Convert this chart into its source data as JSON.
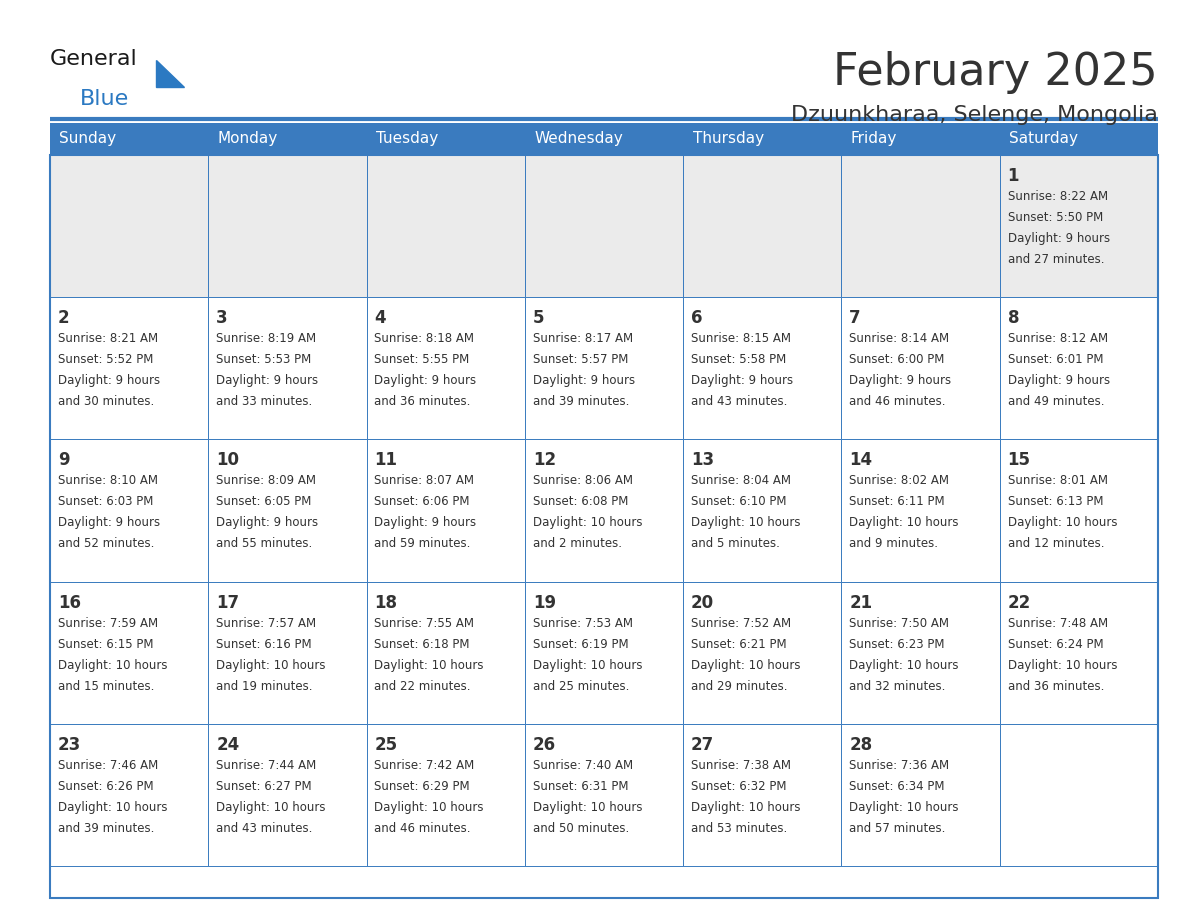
{
  "title": "February 2025",
  "subtitle": "Dzuunkharaa, Selenge, Mongolia",
  "header_bg": "#3a7bbf",
  "header_text_color": "#ffffff",
  "cell_bg_gray": "#ebebeb",
  "cell_bg_white": "#ffffff",
  "border_color": "#3a7bbf",
  "text_color": "#333333",
  "days_of_week": [
    "Sunday",
    "Monday",
    "Tuesday",
    "Wednesday",
    "Thursday",
    "Friday",
    "Saturday"
  ],
  "calendar_data": [
    [
      null,
      null,
      null,
      null,
      null,
      null,
      {
        "day": "1",
        "sunrise": "8:22 AM",
        "sunset": "5:50 PM",
        "daylight_line1": "Daylight: 9 hours",
        "daylight_line2": "and 27 minutes."
      }
    ],
    [
      {
        "day": "2",
        "sunrise": "8:21 AM",
        "sunset": "5:52 PM",
        "daylight_line1": "Daylight: 9 hours",
        "daylight_line2": "and 30 minutes."
      },
      {
        "day": "3",
        "sunrise": "8:19 AM",
        "sunset": "5:53 PM",
        "daylight_line1": "Daylight: 9 hours",
        "daylight_line2": "and 33 minutes."
      },
      {
        "day": "4",
        "sunrise": "8:18 AM",
        "sunset": "5:55 PM",
        "daylight_line1": "Daylight: 9 hours",
        "daylight_line2": "and 36 minutes."
      },
      {
        "day": "5",
        "sunrise": "8:17 AM",
        "sunset": "5:57 PM",
        "daylight_line1": "Daylight: 9 hours",
        "daylight_line2": "and 39 minutes."
      },
      {
        "day": "6",
        "sunrise": "8:15 AM",
        "sunset": "5:58 PM",
        "daylight_line1": "Daylight: 9 hours",
        "daylight_line2": "and 43 minutes."
      },
      {
        "day": "7",
        "sunrise": "8:14 AM",
        "sunset": "6:00 PM",
        "daylight_line1": "Daylight: 9 hours",
        "daylight_line2": "and 46 minutes."
      },
      {
        "day": "8",
        "sunrise": "8:12 AM",
        "sunset": "6:01 PM",
        "daylight_line1": "Daylight: 9 hours",
        "daylight_line2": "and 49 minutes."
      }
    ],
    [
      {
        "day": "9",
        "sunrise": "8:10 AM",
        "sunset": "6:03 PM",
        "daylight_line1": "Daylight: 9 hours",
        "daylight_line2": "and 52 minutes."
      },
      {
        "day": "10",
        "sunrise": "8:09 AM",
        "sunset": "6:05 PM",
        "daylight_line1": "Daylight: 9 hours",
        "daylight_line2": "and 55 minutes."
      },
      {
        "day": "11",
        "sunrise": "8:07 AM",
        "sunset": "6:06 PM",
        "daylight_line1": "Daylight: 9 hours",
        "daylight_line2": "and 59 minutes."
      },
      {
        "day": "12",
        "sunrise": "8:06 AM",
        "sunset": "6:08 PM",
        "daylight_line1": "Daylight: 10 hours",
        "daylight_line2": "and 2 minutes."
      },
      {
        "day": "13",
        "sunrise": "8:04 AM",
        "sunset": "6:10 PM",
        "daylight_line1": "Daylight: 10 hours",
        "daylight_line2": "and 5 minutes."
      },
      {
        "day": "14",
        "sunrise": "8:02 AM",
        "sunset": "6:11 PM",
        "daylight_line1": "Daylight: 10 hours",
        "daylight_line2": "and 9 minutes."
      },
      {
        "day": "15",
        "sunrise": "8:01 AM",
        "sunset": "6:13 PM",
        "daylight_line1": "Daylight: 10 hours",
        "daylight_line2": "and 12 minutes."
      }
    ],
    [
      {
        "day": "16",
        "sunrise": "7:59 AM",
        "sunset": "6:15 PM",
        "daylight_line1": "Daylight: 10 hours",
        "daylight_line2": "and 15 minutes."
      },
      {
        "day": "17",
        "sunrise": "7:57 AM",
        "sunset": "6:16 PM",
        "daylight_line1": "Daylight: 10 hours",
        "daylight_line2": "and 19 minutes."
      },
      {
        "day": "18",
        "sunrise": "7:55 AM",
        "sunset": "6:18 PM",
        "daylight_line1": "Daylight: 10 hours",
        "daylight_line2": "and 22 minutes."
      },
      {
        "day": "19",
        "sunrise": "7:53 AM",
        "sunset": "6:19 PM",
        "daylight_line1": "Daylight: 10 hours",
        "daylight_line2": "and 25 minutes."
      },
      {
        "day": "20",
        "sunrise": "7:52 AM",
        "sunset": "6:21 PM",
        "daylight_line1": "Daylight: 10 hours",
        "daylight_line2": "and 29 minutes."
      },
      {
        "day": "21",
        "sunrise": "7:50 AM",
        "sunset": "6:23 PM",
        "daylight_line1": "Daylight: 10 hours",
        "daylight_line2": "and 32 minutes."
      },
      {
        "day": "22",
        "sunrise": "7:48 AM",
        "sunset": "6:24 PM",
        "daylight_line1": "Daylight: 10 hours",
        "daylight_line2": "and 36 minutes."
      }
    ],
    [
      {
        "day": "23",
        "sunrise": "7:46 AM",
        "sunset": "6:26 PM",
        "daylight_line1": "Daylight: 10 hours",
        "daylight_line2": "and 39 minutes."
      },
      {
        "day": "24",
        "sunrise": "7:44 AM",
        "sunset": "6:27 PM",
        "daylight_line1": "Daylight: 10 hours",
        "daylight_line2": "and 43 minutes."
      },
      {
        "day": "25",
        "sunrise": "7:42 AM",
        "sunset": "6:29 PM",
        "daylight_line1": "Daylight: 10 hours",
        "daylight_line2": "and 46 minutes."
      },
      {
        "day": "26",
        "sunrise": "7:40 AM",
        "sunset": "6:31 PM",
        "daylight_line1": "Daylight: 10 hours",
        "daylight_line2": "and 50 minutes."
      },
      {
        "day": "27",
        "sunrise": "7:38 AM",
        "sunset": "6:32 PM",
        "daylight_line1": "Daylight: 10 hours",
        "daylight_line2": "and 53 minutes."
      },
      {
        "day": "28",
        "sunrise": "7:36 AM",
        "sunset": "6:34 PM",
        "daylight_line1": "Daylight: 10 hours",
        "daylight_line2": "and 57 minutes."
      },
      null
    ]
  ],
  "logo_general_color": "#1a1a1a",
  "logo_blue_color": "#2b79c2",
  "fig_width": 11.88,
  "fig_height": 9.18,
  "dpi": 100
}
